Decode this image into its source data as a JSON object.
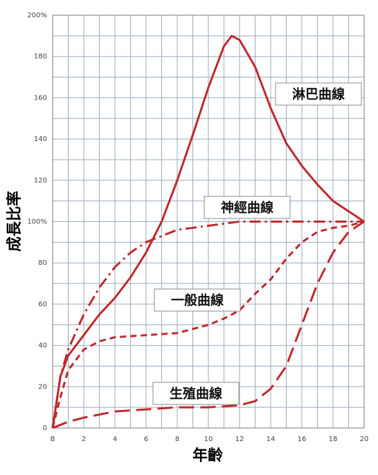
{
  "chart_data": {
    "type": "line",
    "ylabel": "成長比率",
    "xlabel": "年齡",
    "xlim": [
      0,
      20
    ],
    "ylim": [
      0,
      200
    ],
    "xticks": [
      {
        "value": 0,
        "label": "B"
      },
      2,
      4,
      6,
      8,
      10,
      12,
      14,
      16,
      18,
      20
    ],
    "yticks": [
      0,
      20,
      40,
      60,
      80,
      {
        "value": 100,
        "label": "100%"
      },
      120,
      140,
      160,
      180,
      {
        "value": 200,
        "label": "200%"
      }
    ],
    "grid": true,
    "grid_minor": true,
    "series": [
      {
        "name": "淋巴曲線",
        "color": "#c0282c",
        "dash": "solid",
        "x": [
          0,
          0.5,
          1,
          2,
          3,
          4,
          5,
          6,
          7,
          8,
          9,
          10,
          11,
          11.5,
          12,
          13,
          14,
          15,
          16,
          17,
          18,
          19,
          20
        ],
        "values": [
          0,
          25,
          35,
          45,
          55,
          63,
          73,
          85,
          100,
          120,
          142,
          165,
          185,
          190,
          188,
          175,
          155,
          138,
          127,
          118,
          110,
          105,
          100
        ]
      },
      {
        "name": "神經曲線",
        "color": "#c0282c",
        "dash": "dashdot",
        "x": [
          0,
          0.5,
          1,
          2,
          3,
          4,
          5,
          6,
          7,
          8,
          10,
          12,
          14,
          16,
          18,
          20
        ],
        "values": [
          0,
          25,
          38,
          55,
          68,
          78,
          85,
          90,
          93,
          96,
          98,
          100,
          100,
          100,
          100,
          100
        ]
      },
      {
        "name": "一般曲線",
        "color": "#c0282c",
        "dash": "dash",
        "x": [
          0,
          0.5,
          1,
          2,
          3,
          4,
          6,
          8,
          10,
          11,
          12,
          13,
          14,
          15,
          16,
          17,
          18,
          19,
          20
        ],
        "values": [
          0,
          15,
          28,
          38,
          42,
          44,
          45,
          46,
          50,
          53,
          57,
          65,
          72,
          82,
          90,
          95,
          97,
          98,
          100
        ]
      },
      {
        "name": "生殖曲線",
        "color": "#c0282c",
        "dash": "longdash",
        "x": [
          0,
          1,
          2,
          4,
          6,
          8,
          10,
          12,
          13,
          14,
          15,
          16,
          17,
          18,
          19,
          20
        ],
        "values": [
          0,
          3,
          5,
          8,
          9,
          10,
          10,
          11,
          13,
          19,
          30,
          50,
          70,
          85,
          95,
          100
        ]
      }
    ]
  }
}
